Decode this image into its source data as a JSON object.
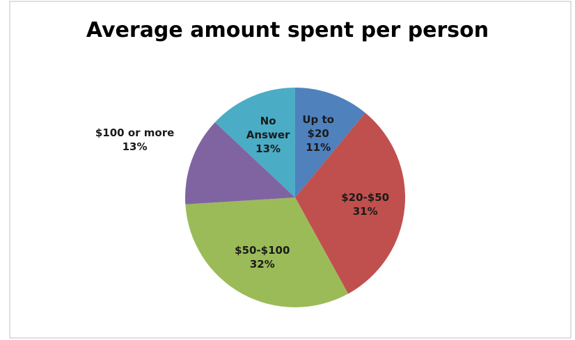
{
  "chart_data": {
    "type": "pie",
    "title": "Average  amount spent per person",
    "categories": [
      "Up to $20",
      "$20-$50",
      "$50-$100",
      "$100 or more",
      "No Answer"
    ],
    "values": [
      11,
      31,
      32,
      13,
      13
    ],
    "value_labels": [
      "11%",
      "31%",
      "32%",
      "13%",
      "13%"
    ],
    "colors": [
      "#4f81bd",
      "#c0504d",
      "#9bbb59",
      "#8064a2",
      "#4bacc6"
    ]
  }
}
